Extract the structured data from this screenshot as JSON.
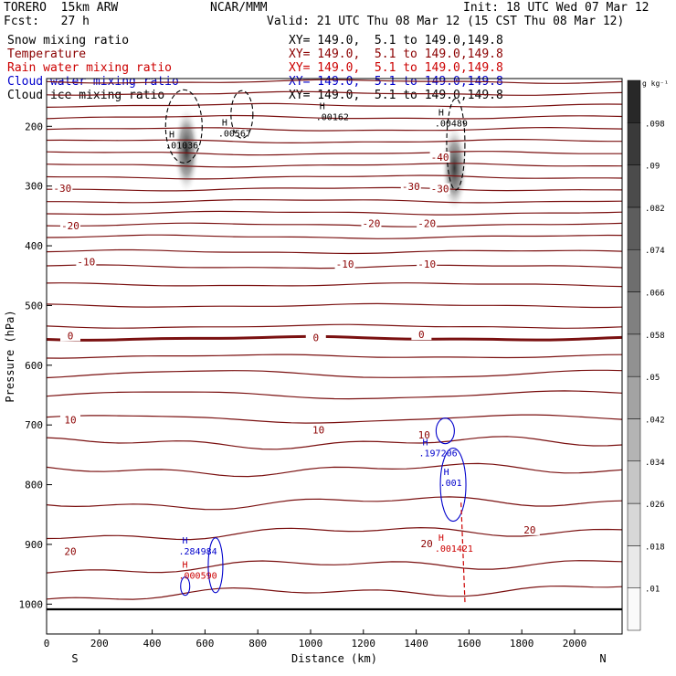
{
  "header": {
    "model": "TORERO  15km ARW",
    "org": "NCAR/MMM",
    "init": "Init: 18 UTC Wed 07 Mar 12",
    "fcst": "Fcst:   27 h",
    "valid": "Valid: 21 UTC Thu 08 Mar 12 (15 CST Thu 08 Mar 12)"
  },
  "legend": [
    {
      "name": "Snow mixing ratio",
      "color": "#000000",
      "xy": "XY= 149.0,  5.1 to 149.0,149.8"
    },
    {
      "name": "Temperature",
      "color": "#8b0000",
      "xy": "XY= 149.0,  5.1 to 149.0,149.8"
    },
    {
      "name": "Rain water mixing ratio",
      "color": "#cc0000",
      "xy": "XY= 149.0,  5.1 to 149.0,149.8"
    },
    {
      "name": "Cloud water mixing ratio",
      "color": "#0000cc",
      "xy": "XY= 149.0,  5.1 to 149.0,149.8"
    },
    {
      "name": "Cloud ice mixing ratio",
      "color": "#000000",
      "xy": "XY= 149.0,  5.1 to 149.0,149.8"
    }
  ],
  "chart_data": {
    "type": "cross-section",
    "xlabel": "Distance (km)",
    "ylabel": "Pressure (hPa)",
    "xlim": [
      0,
      2180
    ],
    "ylim": [
      1050,
      120
    ],
    "x_ticks": [
      0,
      200,
      400,
      600,
      800,
      1000,
      1200,
      1400,
      1600,
      1800,
      2000
    ],
    "y_ticks": [
      200,
      300,
      400,
      500,
      600,
      700,
      800,
      900,
      1000
    ],
    "left_end": "S",
    "right_end": "N",
    "isotherm_levels": [
      125,
      145,
      165,
      185,
      205,
      225,
      245,
      265,
      285,
      305,
      325,
      345,
      365,
      385,
      410,
      435,
      465,
      500,
      535,
      555,
      585,
      615,
      650,
      690,
      730,
      775,
      830,
      880,
      935,
      980
    ],
    "freezing_level": 555,
    "temperature_labels": [
      {
        "text": "-30",
        "x": 60,
        "p": 305
      },
      {
        "text": "-20",
        "x": 90,
        "p": 368
      },
      {
        "text": "-10",
        "x": 150,
        "p": 428
      },
      {
        "text": "0",
        "x": 90,
        "p": 552
      },
      {
        "text": "0",
        "x": 1020,
        "p": 555
      },
      {
        "text": "0",
        "x": 1420,
        "p": 550
      },
      {
        "text": "10",
        "x": 90,
        "p": 693
      },
      {
        "text": "10",
        "x": 1030,
        "p": 710
      },
      {
        "text": "10",
        "x": 1430,
        "p": 718
      },
      {
        "text": "-10",
        "x": 1130,
        "p": 432
      },
      {
        "text": "-10",
        "x": 1440,
        "p": 432
      },
      {
        "text": "-20",
        "x": 1230,
        "p": 364
      },
      {
        "text": "-20",
        "x": 1440,
        "p": 364
      },
      {
        "text": "-30",
        "x": 1380,
        "p": 302
      },
      {
        "text": "-30",
        "x": 1490,
        "p": 306
      },
      {
        "text": "-40",
        "x": 1490,
        "p": 253
      },
      {
        "text": "20",
        "x": 90,
        "p": 913
      },
      {
        "text": "20",
        "x": 1830,
        "p": 877
      },
      {
        "text": "20",
        "x": 1440,
        "p": 900
      }
    ],
    "maxima": [
      {
        "field": "Cloud ice mixing ratio",
        "text": ".01036",
        "x": 540,
        "p": 225,
        "color": "#000000"
      },
      {
        "field": "Cloud ice mixing ratio",
        "text": ".00567",
        "x": 740,
        "p": 205,
        "color": "#000000"
      },
      {
        "field": "Cloud ice mixing ratio",
        "text": ".00162",
        "x": 1110,
        "p": 177,
        "color": "#000000"
      },
      {
        "field": "Cloud ice mixing ratio",
        "text": ".00489",
        "x": 1560,
        "p": 188,
        "color": "#000000"
      },
      {
        "field": "Cloud water mixing ratio",
        "text": ".197206",
        "x": 1500,
        "p": 740,
        "color": "#0000cc"
      },
      {
        "field": "Cloud water mixing ratio",
        "text": ".001",
        "x": 1580,
        "p": 790,
        "color": "#0000cc"
      },
      {
        "field": "Cloud water mixing ratio",
        "text": ".284984",
        "x": 590,
        "p": 905,
        "color": "#0000cc"
      },
      {
        "field": "Rain water mixing ratio",
        "text": ".000590",
        "x": 590,
        "p": 945,
        "color": "#cc0000"
      },
      {
        "field": "Rain water mixing ratio",
        "text": ".001421",
        "x": 1560,
        "p": 900,
        "color": "#cc0000"
      }
    ],
    "snow_max_centers": [
      {
        "x": 530,
        "p": 240
      },
      {
        "x": 1545,
        "p": 270
      }
    ],
    "colorbar": {
      "unit": "g kg⁻¹",
      "values": [
        0.01,
        0.018,
        0.026,
        0.034,
        0.042,
        0.05,
        0.058,
        0.066,
        0.074,
        0.082,
        0.09,
        0.098
      ],
      "labels": [
        ".01",
        ".018",
        ".026",
        ".034",
        ".042",
        ".05",
        ".058",
        ".066",
        ".074",
        ".082",
        ".09",
        ".098"
      ]
    }
  }
}
